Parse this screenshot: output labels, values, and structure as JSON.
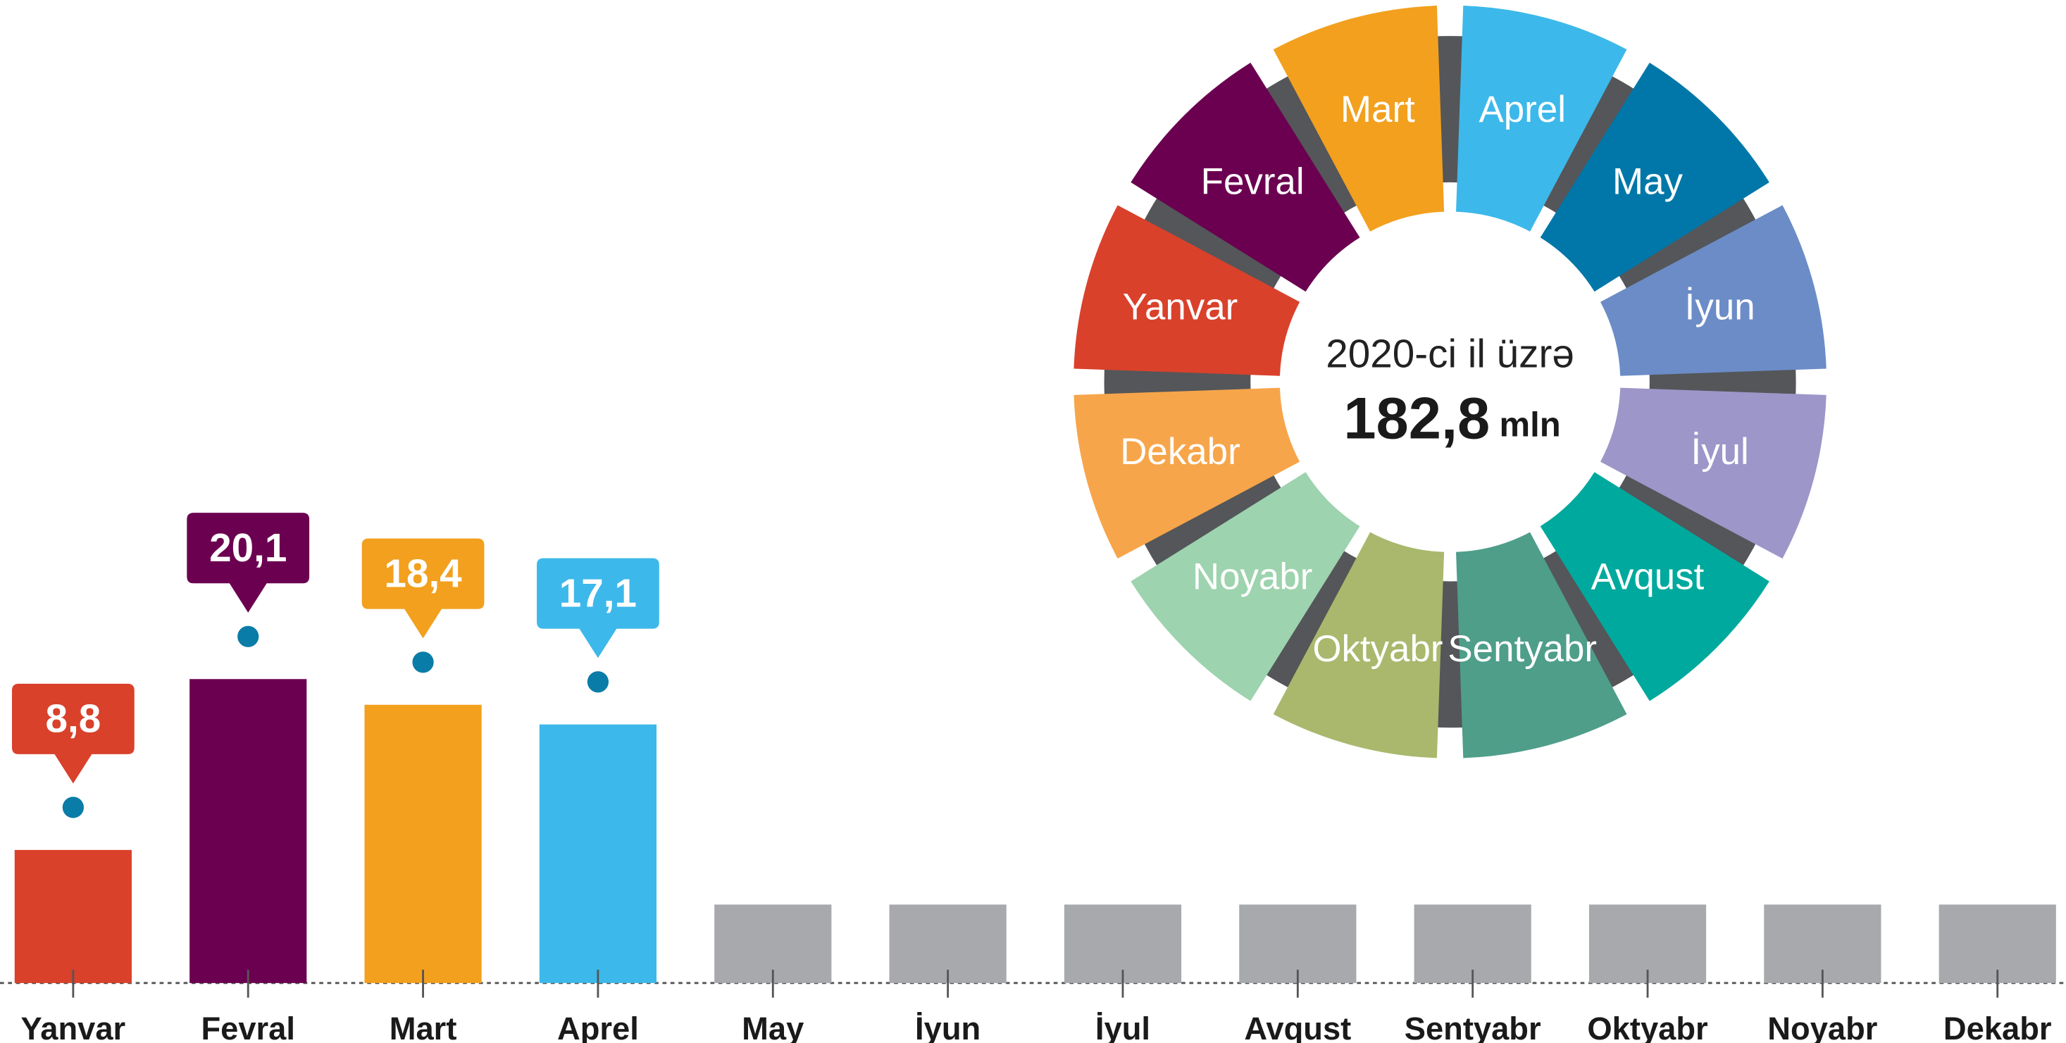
{
  "chart_data": {
    "type": "bar",
    "categories": [
      "Yanvar",
      "Fevral",
      "Mart",
      "Aprel",
      "May",
      "İyun",
      "İyul",
      "Avqust",
      "Sentyabr",
      "Oktyabr",
      "Noyabr",
      "Dekabr"
    ],
    "values": [
      8.8,
      20.1,
      18.4,
      17.1,
      null,
      null,
      null,
      null,
      null,
      null,
      null,
      null
    ],
    "value_labels": [
      "8,8",
      "20,1",
      "18,4",
      "17,1",
      null,
      null,
      null,
      null,
      null,
      null,
      null,
      null
    ],
    "colors": [
      "#d9412b",
      "#6b0050",
      "#f2a01e",
      "#3db8ea",
      "#a7a9ac",
      "#a7a9ac",
      "#a7a9ac",
      "#a7a9ac",
      "#a7a9ac",
      "#a7a9ac",
      "#a7a9ac",
      "#a7a9ac"
    ],
    "ylim": [
      0,
      65
    ]
  },
  "donut": {
    "labels": [
      "Aprel",
      "May",
      "İyun",
      "İyul",
      "Avqust",
      "Sentyabr",
      "Oktyabr",
      "Noyabr",
      "Dekabr",
      "Yanvar",
      "Fevral",
      "Mart"
    ],
    "colors": [
      "#3db8ea",
      "#0077a8",
      "#6b8cc7",
      "#9d96c9",
      "#00a99d",
      "#4e9e8a",
      "#a9b86c",
      "#9dd3ae",
      "#f7a54a",
      "#d9412b",
      "#6b0050",
      "#f2a01e"
    ],
    "center_text": "2020-ci il üzrə",
    "total": 182.8,
    "total_label": "182,8",
    "unit": "mln"
  }
}
